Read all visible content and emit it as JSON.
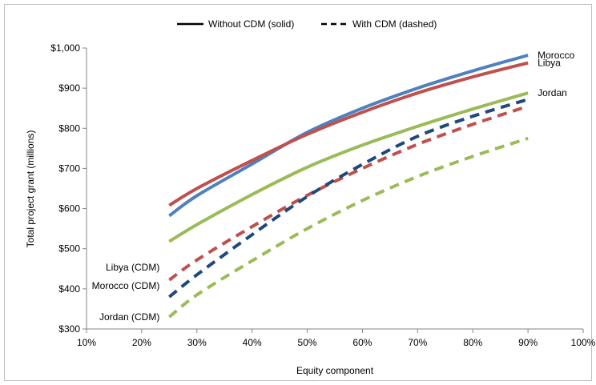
{
  "chart_data": {
    "type": "line",
    "xlabel": "Equity component",
    "ylabel": "Total project grant (millions)",
    "xlim": [
      0.1,
      1.0
    ],
    "ylim": [
      300,
      1000
    ],
    "x_ticks": [
      "10%",
      "20%",
      "30%",
      "40%",
      "50%",
      "60%",
      "70%",
      "80%",
      "90%",
      "100%"
    ],
    "y_ticks": [
      "$300",
      "$400",
      "$500",
      "$600",
      "$700",
      "$800",
      "$900",
      "$1,000"
    ],
    "grid": false,
    "legend": {
      "position": "top",
      "entries": [
        {
          "label": "Without CDM (solid)",
          "style": "solid"
        },
        {
          "label": "With CDM (dashed)",
          "style": "dashed"
        }
      ]
    },
    "x": [
      0.25,
      0.3,
      0.4,
      0.5,
      0.6,
      0.7,
      0.8,
      0.9
    ],
    "series": [
      {
        "name": "Morocco",
        "label": "Morocco",
        "style": "solid",
        "color": "#4F81BD",
        "values": [
          582,
          632,
          711,
          790,
          850,
          900,
          943,
          982
        ]
      },
      {
        "name": "Libya",
        "label": "Libya",
        "style": "solid",
        "color": "#C0504D",
        "values": [
          608,
          650,
          720,
          785,
          840,
          888,
          928,
          963
        ]
      },
      {
        "name": "Jordan",
        "label": "Jordan",
        "style": "solid",
        "color": "#9BBB59",
        "values": [
          518,
          560,
          635,
          703,
          758,
          805,
          848,
          888
        ]
      },
      {
        "name": "Libya (CDM)",
        "label": "Libya (CDM)",
        "style": "dashed",
        "color": "#C0504D",
        "values": [
          422,
          472,
          555,
          633,
          700,
          760,
          810,
          855
        ]
      },
      {
        "name": "Morocco (CDM)",
        "label": "Morocco (CDM)",
        "style": "dashed",
        "color": "#1F497D",
        "values": [
          380,
          435,
          535,
          630,
          710,
          780,
          830,
          872
        ]
      },
      {
        "name": "Jordan (CDM)",
        "label": "Jordan (CDM)",
        "style": "dashed",
        "color": "#9BBB59",
        "values": [
          330,
          385,
          470,
          550,
          620,
          680,
          730,
          775
        ]
      }
    ]
  }
}
